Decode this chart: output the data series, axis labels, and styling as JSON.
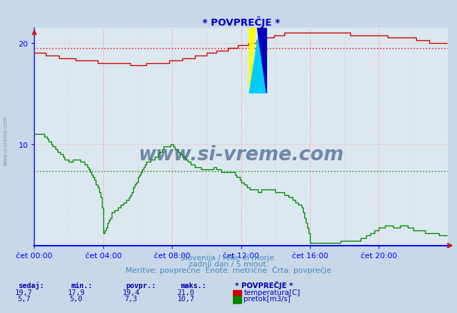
{
  "title": "* POVPREČJE *",
  "bg_color": "#c8d8e8",
  "plot_bg_color": "#dce8f0",
  "title_color": "#0000cc",
  "axis_color": "#0000ff",
  "x_ticks": [
    "čet 00:00",
    "čet 04:00",
    "čet 08:00",
    "čet 12:00",
    "čet 16:00",
    "čet 20:00"
  ],
  "x_tick_positions": [
    0,
    48,
    96,
    144,
    192,
    240
  ],
  "x_max": 288,
  "y_min": 0,
  "y_max": 21.5,
  "y_ticks": [
    10,
    20
  ],
  "temp_avg": 19.4,
  "flow_avg": 7.3,
  "temp_color": "#cc0000",
  "flow_color": "#008800",
  "vgrid_color": "#ffaaaa",
  "hgrid_color": "#ffaaaa",
  "watermark_text": "www.si-vreme.com",
  "watermark_color": "#1a3a6b",
  "footer_line1": "Slovenija / reke in morje.",
  "footer_line2": "zadnji dan / 5 minut.",
  "footer_line3": "Meritve: povprečne  Enote: metrične  Črta: povprečje",
  "footer_color": "#4488bb",
  "legend_title": "* POVPREČJE *",
  "legend_color": "#0000aa",
  "left_label": "www.si-vreme.com",
  "stats_label_color": "#0000aa",
  "stats_value_color": "#0000aa",
  "stats_headers": [
    "sedaj:",
    "min.:",
    "povpr.:",
    "maks.:"
  ],
  "temp_stats": [
    "19,7",
    "17,9",
    "19,4",
    "21,0"
  ],
  "flow_stats": [
    "5,7",
    "5,0",
    "7,3",
    "10,7"
  ],
  "temp_label": "temperatura[C]",
  "flow_label": "pretok[m3/s]"
}
